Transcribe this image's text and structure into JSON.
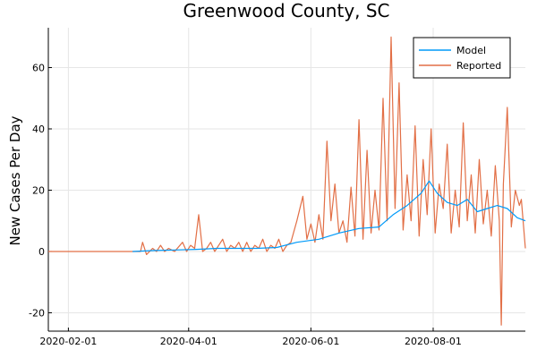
{
  "chart_data": {
    "type": "line",
    "title": "Greenwood County, SC",
    "xlabel": "",
    "ylabel": "New Cases Per Day",
    "x_ticks": [
      "2020-02-01",
      "2020-04-01",
      "2020-06-01",
      "2020-08-01"
    ],
    "y_ticks": [
      -20,
      0,
      20,
      40,
      60
    ],
    "xlim": [
      "2020-01-22",
      "2020-09-16"
    ],
    "ylim": [
      -26,
      73
    ],
    "grid": true,
    "legend_position": "top-right",
    "colors": {
      "Model": "#009af9",
      "Reported": "#e26f46"
    },
    "series": [
      {
        "name": "Model",
        "points": [
          [
            "2020-03-04",
            0
          ],
          [
            "2020-03-15",
            0.3
          ],
          [
            "2020-03-25",
            0.5
          ],
          [
            "2020-04-05",
            0.7
          ],
          [
            "2020-04-15",
            1
          ],
          [
            "2020-04-25",
            1
          ],
          [
            "2020-05-05",
            1
          ],
          [
            "2020-05-15",
            1.3
          ],
          [
            "2020-05-25",
            3
          ],
          [
            "2020-06-05",
            4
          ],
          [
            "2020-06-15",
            6
          ],
          [
            "2020-06-25",
            7.5
          ],
          [
            "2020-07-05",
            8
          ],
          [
            "2020-07-12",
            12
          ],
          [
            "2020-07-19",
            15
          ],
          [
            "2020-07-26",
            19
          ],
          [
            "2020-07-30",
            23
          ],
          [
            "2020-08-03",
            19
          ],
          [
            "2020-08-08",
            16
          ],
          [
            "2020-08-13",
            15
          ],
          [
            "2020-08-18",
            17
          ],
          [
            "2020-08-23",
            13
          ],
          [
            "2020-08-28",
            14
          ],
          [
            "2020-09-02",
            15
          ],
          [
            "2020-09-07",
            14
          ],
          [
            "2020-09-12",
            11
          ],
          [
            "2020-09-16",
            10
          ]
        ]
      },
      {
        "name": "Reported",
        "points": [
          [
            "2020-01-22",
            0
          ],
          [
            "2020-03-08",
            0
          ],
          [
            "2020-03-09",
            3
          ],
          [
            "2020-03-11",
            -1
          ],
          [
            "2020-03-14",
            1
          ],
          [
            "2020-03-16",
            0
          ],
          [
            "2020-03-18",
            2
          ],
          [
            "2020-03-20",
            0
          ],
          [
            "2020-03-22",
            1
          ],
          [
            "2020-03-25",
            0
          ],
          [
            "2020-03-29",
            3
          ],
          [
            "2020-03-31",
            0
          ],
          [
            "2020-04-02",
            2
          ],
          [
            "2020-04-04",
            1
          ],
          [
            "2020-04-06",
            12
          ],
          [
            "2020-04-08",
            0
          ],
          [
            "2020-04-10",
            1
          ],
          [
            "2020-04-12",
            3
          ],
          [
            "2020-04-14",
            0
          ],
          [
            "2020-04-16",
            2
          ],
          [
            "2020-04-18",
            4
          ],
          [
            "2020-04-20",
            0
          ],
          [
            "2020-04-22",
            2
          ],
          [
            "2020-04-24",
            1
          ],
          [
            "2020-04-26",
            3
          ],
          [
            "2020-04-28",
            0
          ],
          [
            "2020-04-30",
            3
          ],
          [
            "2020-05-02",
            0
          ],
          [
            "2020-05-04",
            2
          ],
          [
            "2020-05-06",
            1
          ],
          [
            "2020-05-08",
            4
          ],
          [
            "2020-05-10",
            0
          ],
          [
            "2020-05-12",
            2
          ],
          [
            "2020-05-14",
            1
          ],
          [
            "2020-05-16",
            4
          ],
          [
            "2020-05-18",
            0
          ],
          [
            "2020-05-20",
            2
          ],
          [
            "2020-05-22",
            3
          ],
          [
            "2020-05-25",
            10
          ],
          [
            "2020-05-28",
            18
          ],
          [
            "2020-05-30",
            4
          ],
          [
            "2020-06-01",
            9
          ],
          [
            "2020-06-03",
            3
          ],
          [
            "2020-06-05",
            12
          ],
          [
            "2020-06-07",
            4
          ],
          [
            "2020-06-09",
            36
          ],
          [
            "2020-06-11",
            10
          ],
          [
            "2020-06-13",
            22
          ],
          [
            "2020-06-15",
            6
          ],
          [
            "2020-06-17",
            10
          ],
          [
            "2020-06-19",
            3
          ],
          [
            "2020-06-21",
            21
          ],
          [
            "2020-06-23",
            5
          ],
          [
            "2020-06-25",
            43
          ],
          [
            "2020-06-27",
            4
          ],
          [
            "2020-06-29",
            33
          ],
          [
            "2020-07-01",
            6
          ],
          [
            "2020-07-03",
            20
          ],
          [
            "2020-07-05",
            7
          ],
          [
            "2020-07-07",
            50
          ],
          [
            "2020-07-09",
            10
          ],
          [
            "2020-07-11",
            70
          ],
          [
            "2020-07-13",
            14
          ],
          [
            "2020-07-15",
            55
          ],
          [
            "2020-07-17",
            7
          ],
          [
            "2020-07-19",
            25
          ],
          [
            "2020-07-21",
            10
          ],
          [
            "2020-07-23",
            41
          ],
          [
            "2020-07-25",
            5
          ],
          [
            "2020-07-27",
            30
          ],
          [
            "2020-07-29",
            12
          ],
          [
            "2020-07-31",
            40
          ],
          [
            "2020-08-02",
            6
          ],
          [
            "2020-08-04",
            22
          ],
          [
            "2020-08-06",
            14
          ],
          [
            "2020-08-08",
            35
          ],
          [
            "2020-08-10",
            6
          ],
          [
            "2020-08-12",
            20
          ],
          [
            "2020-08-14",
            8
          ],
          [
            "2020-08-16",
            42
          ],
          [
            "2020-08-18",
            10
          ],
          [
            "2020-08-20",
            25
          ],
          [
            "2020-08-22",
            6
          ],
          [
            "2020-08-24",
            30
          ],
          [
            "2020-08-26",
            9
          ],
          [
            "2020-08-28",
            20
          ],
          [
            "2020-08-30",
            5
          ],
          [
            "2020-09-01",
            28
          ],
          [
            "2020-09-03",
            10
          ],
          [
            "2020-09-04",
            -24
          ],
          [
            "2020-09-05",
            22
          ],
          [
            "2020-09-07",
            47
          ],
          [
            "2020-09-09",
            8
          ],
          [
            "2020-09-11",
            20
          ],
          [
            "2020-09-13",
            15
          ],
          [
            "2020-09-14",
            17
          ],
          [
            "2020-09-16",
            1
          ]
        ]
      }
    ]
  }
}
